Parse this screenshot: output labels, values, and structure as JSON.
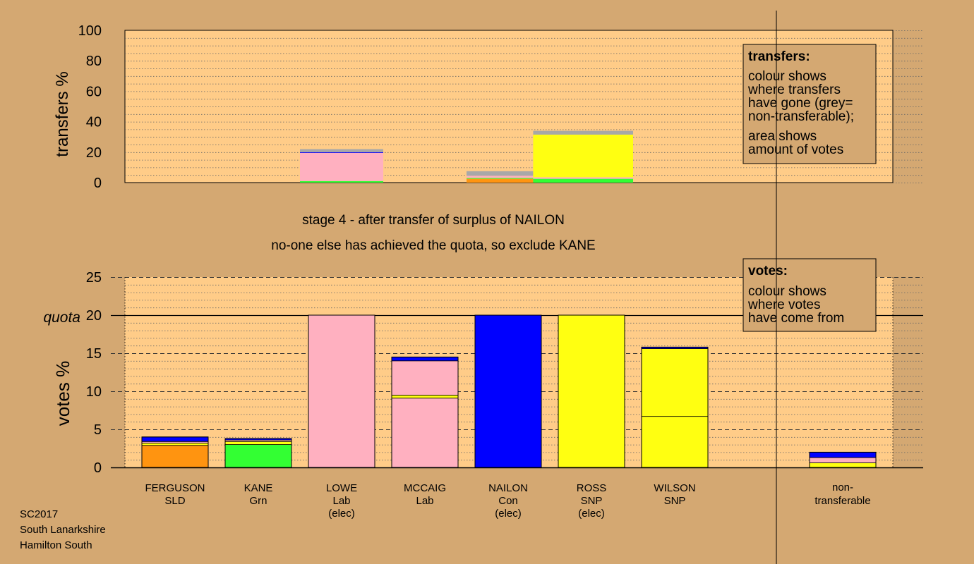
{
  "colors": {
    "background": "#d4a872",
    "plot_bg": "#ffcc88",
    "SLD": "#ff9410",
    "Grn": "#33ff33",
    "Lab": "#ffb0c0",
    "Con": "#0000ff",
    "SNP": "#ffff11",
    "nontransferable": "#a8a8a8"
  },
  "caption": {
    "line1": "stage 4 - after transfer of surplus of NAILON",
    "line2": "no-one else has achieved the quota, so exclude KANE"
  },
  "footer": {
    "line1": "SC2017",
    "line2": "South Lanarkshire",
    "line3": "Hamilton South"
  },
  "chart_data": [
    {
      "type": "bar",
      "name": "transfers",
      "ylabel": "transfers %",
      "ylim": [
        0,
        100
      ],
      "yticks": [
        0,
        20,
        40,
        60,
        80,
        100
      ],
      "grid": true,
      "legend": {
        "placement": "top-right",
        "title": "transfers:",
        "lines1": [
          "colour shows",
          "where transfers",
          "have gone (grey=",
          "non-transferable);"
        ],
        "lines2": [
          "area shows",
          "amount of votes"
        ]
      },
      "bars": [
        {
          "from": 2,
          "to": 3,
          "segments": [
            {
              "party": "Grn",
              "value": 1
            },
            {
              "party": "Lab",
              "value": 18.5
            },
            {
              "party": "Con",
              "value": 0.5
            },
            {
              "party": "nontransferable",
              "value": 2
            }
          ]
        },
        {
          "from": 4,
          "to": 4.8,
          "segments": [
            {
              "party": "SLD",
              "value": 2.5
            },
            {
              "party": "Grn",
              "value": 0.5
            },
            {
              "party": "Lab",
              "value": 1.5
            },
            {
              "party": "nontransferable",
              "value": 3
            }
          ]
        },
        {
          "from": 4.8,
          "to": 6,
          "segments": [
            {
              "party": "Grn",
              "value": 2.5
            },
            {
              "party": "Lab",
              "value": 1
            },
            {
              "party": "SNP",
              "value": 28
            },
            {
              "party": "nontransferable",
              "value": 2.5
            }
          ]
        }
      ]
    },
    {
      "type": "bar",
      "name": "votes",
      "ylabel": "votes %",
      "ylim": [
        0,
        25
      ],
      "yticks": [
        0,
        5,
        10,
        15,
        20,
        25
      ],
      "quota": {
        "label": "quota",
        "value": 20
      },
      "grid": true,
      "legend": {
        "placement": "top-right",
        "title": "votes:",
        "lines": [
          "colour shows",
          "where votes",
          "have come from"
        ]
      },
      "candidates": [
        {
          "name": "FERGUSON",
          "party": "SLD",
          "note": "",
          "segments": [
            {
              "party": "SLD",
              "value": 2.9
            },
            {
              "party": "SNP",
              "value": 0.3
            },
            {
              "party": "Lab",
              "value": 0.2
            },
            {
              "party": "Con",
              "value": 0.6
            }
          ]
        },
        {
          "name": "KANE",
          "party": "Grn",
          "note": "",
          "segments": [
            {
              "party": "Grn",
              "value": 3.0
            },
            {
              "party": "SNP",
              "value": 0.4
            },
            {
              "party": "Lab",
              "value": 0.2
            },
            {
              "party": "Con",
              "value": 0.2
            }
          ]
        },
        {
          "name": "LOWE",
          "party": "Lab",
          "note": "(elec)",
          "segments": [
            {
              "party": "Lab",
              "value": 20
            }
          ]
        },
        {
          "name": "MCCAIG",
          "party": "Lab",
          "note": "",
          "segments": [
            {
              "party": "Lab",
              "value": 9.1
            },
            {
              "party": "SNP",
              "value": 0.4
            },
            {
              "party": "Lab",
              "value": 4.5
            },
            {
              "party": "Con",
              "value": 0.5
            }
          ]
        },
        {
          "name": "NAILON",
          "party": "Con",
          "note": "(elec)",
          "segments": [
            {
              "party": "Con",
              "value": 20
            }
          ]
        },
        {
          "name": "ROSS",
          "party": "SNP",
          "note": "(elec)",
          "segments": [
            {
              "party": "SNP",
              "value": 20
            }
          ]
        },
        {
          "name": "WILSON",
          "party": "SNP",
          "note": "",
          "segments": [
            {
              "party": "SNP",
              "value": 6.7
            },
            {
              "party": "SNP",
              "value": 8.9
            },
            {
              "party": "Con",
              "value": 0.2
            }
          ]
        }
      ],
      "nontransferable": {
        "label1": "non-",
        "label2": "transferable",
        "segments": [
          {
            "party": "SNP",
            "value": 0.6
          },
          {
            "party": "Lab",
            "value": 0.7
          },
          {
            "party": "Con",
            "value": 0.7
          }
        ]
      }
    }
  ]
}
